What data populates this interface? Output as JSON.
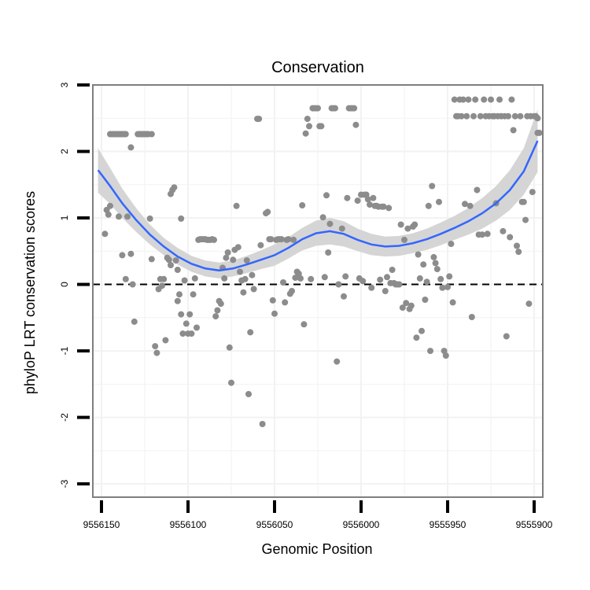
{
  "chart_data": {
    "type": "scatter",
    "title": "Conservation",
    "xlabel": "Genomic Position",
    "ylabel": "phyloP LRT conservation scores",
    "x_reversed": true,
    "xlim": [
      9556155,
      9555895
    ],
    "ylim": [
      -3.2,
      3.0
    ],
    "x_ticks": [
      9556150,
      9556100,
      9556050,
      9556000,
      9555950,
      9555900
    ],
    "x_tick_labels": [
      "9556150",
      "9556100",
      "9556050",
      "9556000",
      "9555950",
      "9555900"
    ],
    "y_ticks": [
      -3,
      -2,
      -1,
      0,
      1,
      2,
      3
    ],
    "y_tick_labels": [
      "-3",
      "-2",
      "-1",
      "0",
      "1",
      "2",
      "3"
    ],
    "grid": true,
    "reference_line": {
      "y": 0,
      "style": "dashed",
      "color": "#000000"
    },
    "colors": {
      "points": "#8c8c8c",
      "smooth_line": "#3366ff",
      "confidence_band": "#d3d3d3",
      "panel_border": "#7f7f7f",
      "grid": "#f2f2f2"
    },
    "points": [
      [
        9556148,
        0.76
      ],
      [
        9556147,
        1.12
      ],
      [
        9556146,
        1.05
      ],
      [
        9556145,
        2.26
      ],
      [
        9556144,
        2.26
      ],
      [
        9556143,
        2.26
      ],
      [
        9556142,
        2.26
      ],
      [
        9556141,
        2.26
      ],
      [
        9556140,
        2.26
      ],
      [
        9556139,
        2.26
      ],
      [
        9556138,
        2.26
      ],
      [
        9556137,
        2.26
      ],
      [
        9556136,
        2.26
      ],
      [
        9556145,
        1.18
      ],
      [
        9556140,
        1.02
      ],
      [
        9556138,
        0.44
      ],
      [
        9556136,
        0.08
      ],
      [
        9556135,
        1.02
      ],
      [
        9556133,
        2.06
      ],
      [
        9556133,
        0.46
      ],
      [
        9556132,
        0.0
      ],
      [
        9556131,
        -0.56
      ],
      [
        9556129,
        2.26
      ],
      [
        9556128,
        2.26
      ],
      [
        9556127,
        2.26
      ],
      [
        9556126,
        2.26
      ],
      [
        9556125,
        2.26
      ],
      [
        9556124,
        2.26
      ],
      [
        9556123,
        2.26
      ],
      [
        9556121,
        2.26
      ],
      [
        9556122,
        0.99
      ],
      [
        9556121,
        0.38
      ],
      [
        9556119,
        -0.93
      ],
      [
        9556118,
        -1.03
      ],
      [
        9556117,
        -0.07
      ],
      [
        9556116,
        0.08
      ],
      [
        9556115,
        -0.02
      ],
      [
        9556114,
        0.08
      ],
      [
        9556113,
        -0.84
      ],
      [
        9556112,
        0.4
      ],
      [
        9556111,
        0.37
      ],
      [
        9556110,
        0.29
      ],
      [
        9556110,
        1.36
      ],
      [
        9556109,
        1.42
      ],
      [
        9556108,
        1.46
      ],
      [
        9556107,
        0.36
      ],
      [
        9556106,
        0.22
      ],
      [
        9556106,
        -0.25
      ],
      [
        9556105,
        -0.15
      ],
      [
        9556104,
        0.99
      ],
      [
        9556104,
        -0.45
      ],
      [
        9556103,
        -0.74
      ],
      [
        9556102,
        0.06
      ],
      [
        9556101,
        -0.59
      ],
      [
        9556100,
        -0.74
      ],
      [
        9556099,
        -0.45
      ],
      [
        9556098,
        -0.74
      ],
      [
        9556097,
        -0.15
      ],
      [
        9556096,
        0.09
      ],
      [
        9556095,
        -0.65
      ],
      [
        9556094,
        0.67
      ],
      [
        9556093,
        0.68
      ],
      [
        9556092,
        0.68
      ],
      [
        9556091,
        0.68
      ],
      [
        9556090,
        0.68
      ],
      [
        9556089,
        0.67
      ],
      [
        9556088,
        0.67
      ],
      [
        9556087,
        0.67
      ],
      [
        9556086,
        0.68
      ],
      [
        9556085,
        0.67
      ],
      [
        9556084,
        -0.48
      ],
      [
        9556083,
        -0.39
      ],
      [
        9556082,
        -0.25
      ],
      [
        9556081,
        -0.29
      ],
      [
        9556080,
        0.25
      ],
      [
        9556079,
        0.09
      ],
      [
        9556078,
        0.4
      ],
      [
        9556077,
        0.48
      ],
      [
        9556076,
        -0.95
      ],
      [
        9556075,
        -1.48
      ],
      [
        9556074,
        0.37
      ],
      [
        9556073,
        0.52
      ],
      [
        9556072,
        1.18
      ],
      [
        9556071,
        0.56
      ],
      [
        9556070,
        0.19
      ],
      [
        9556069,
        0.06
      ],
      [
        9556068,
        -0.12
      ],
      [
        9556067,
        0.08
      ],
      [
        9556066,
        0.36
      ],
      [
        9556065,
        -1.65
      ],
      [
        9556064,
        -0.72
      ],
      [
        9556063,
        0.14
      ],
      [
        9556062,
        -0.07
      ],
      [
        9556060,
        2.49
      ],
      [
        9556059,
        2.49
      ],
      [
        9556058,
        0.59
      ],
      [
        9556057,
        -2.1
      ],
      [
        9556055,
        1.07
      ],
      [
        9556054,
        1.09
      ],
      [
        9556053,
        0.68
      ],
      [
        9556052,
        0.68
      ],
      [
        9556051,
        -0.24
      ],
      [
        9556050,
        -0.44
      ],
      [
        9556049,
        0.67
      ],
      [
        9556048,
        0.68
      ],
      [
        9556047,
        0.68
      ],
      [
        9556046,
        0.68
      ],
      [
        9556045,
        0.03
      ],
      [
        9556044,
        -0.27
      ],
      [
        9556043,
        0.67
      ],
      [
        9556042,
        0.68
      ],
      [
        9556041,
        -0.14
      ],
      [
        9556040,
        -0.1
      ],
      [
        9556039,
        0.67
      ],
      [
        9556038,
        0.1
      ],
      [
        9556037,
        0.19
      ],
      [
        9556036,
        0.16
      ],
      [
        9556035,
        0.09
      ],
      [
        9556034,
        1.19
      ],
      [
        9556033,
        -0.6
      ],
      [
        9556032,
        2.27
      ],
      [
        9556031,
        2.49
      ],
      [
        9556030,
        2.38
      ],
      [
        9556029,
        0.08
      ],
      [
        9556028,
        2.65
      ],
      [
        9556027,
        2.65
      ],
      [
        9556026,
        2.65
      ],
      [
        9556025,
        2.65
      ],
      [
        9556024,
        2.38
      ],
      [
        9556023,
        2.38
      ],
      [
        9556022,
        1.01
      ],
      [
        9556021,
        0.11
      ],
      [
        9556020,
        1.34
      ],
      [
        9556019,
        0.48
      ],
      [
        9556018,
        0.91
      ],
      [
        9556017,
        2.65
      ],
      [
        9556016,
        2.65
      ],
      [
        9556015,
        2.65
      ],
      [
        9556014,
        -1.16
      ],
      [
        9556013,
        0.0
      ],
      [
        9556011,
        0.84
      ],
      [
        9556010,
        -0.18
      ],
      [
        9556009,
        0.12
      ],
      [
        9556008,
        1.3
      ],
      [
        9556007,
        2.65
      ],
      [
        9556006,
        2.65
      ],
      [
        9556005,
        2.65
      ],
      [
        9556004,
        2.65
      ],
      [
        9556003,
        2.4
      ],
      [
        9556002,
        1.26
      ],
      [
        9556001,
        0.09
      ],
      [
        9556000,
        1.35
      ],
      [
        9555999,
        0.05
      ],
      [
        9555998,
        1.35
      ],
      [
        9555997,
        1.35
      ],
      [
        9555996,
        1.28
      ],
      [
        9555995,
        1.2
      ],
      [
        9555994,
        -0.05
      ],
      [
        9555993,
        1.3
      ],
      [
        9555992,
        1.18
      ],
      [
        9555991,
        1.18
      ],
      [
        9555990,
        1.17
      ],
      [
        9555989,
        0.07
      ],
      [
        9555988,
        1.17
      ],
      [
        9555987,
        1.17
      ],
      [
        9555986,
        -0.1
      ],
      [
        9555985,
        0.11
      ],
      [
        9555984,
        1.15
      ],
      [
        9555983,
        0.02
      ],
      [
        9555982,
        0.22
      ],
      [
        9555981,
        0.02
      ],
      [
        9555980,
        0.0
      ],
      [
        9555979,
        0.0
      ],
      [
        9555978,
        0.0
      ],
      [
        9555977,
        0.9
      ],
      [
        9555976,
        -0.35
      ],
      [
        9555975,
        0.67
      ],
      [
        9555974,
        -0.28
      ],
      [
        9555973,
        0.84
      ],
      [
        9555972,
        -0.37
      ],
      [
        9555971,
        -0.32
      ],
      [
        9555970,
        0.87
      ],
      [
        9555969,
        0.9
      ],
      [
        9555968,
        -0.8
      ],
      [
        9555967,
        0.45
      ],
      [
        9555966,
        0.09
      ],
      [
        9555965,
        -0.7
      ],
      [
        9555964,
        0.3
      ],
      [
        9555963,
        -0.23
      ],
      [
        9555962,
        0.04
      ],
      [
        9555961,
        1.18
      ],
      [
        9555960,
        -1.0
      ],
      [
        9555959,
        1.48
      ],
      [
        9555958,
        0.41
      ],
      [
        9555957,
        0.32
      ],
      [
        9555956,
        0.23
      ],
      [
        9555955,
        1.24
      ],
      [
        9555954,
        0.08
      ],
      [
        9555953,
        -0.05
      ],
      [
        9555952,
        -1.0
      ],
      [
        9555951,
        -1.07
      ],
      [
        9555950,
        -0.04
      ],
      [
        9555949,
        0.12
      ],
      [
        9555948,
        0.61
      ],
      [
        9555947,
        -0.27
      ],
      [
        9555946,
        2.78
      ],
      [
        9555945,
        2.53
      ],
      [
        9555944,
        2.53
      ],
      [
        9555943,
        2.78
      ],
      [
        9555942,
        2.53
      ],
      [
        9555941,
        2.78
      ],
      [
        9555940,
        1.21
      ],
      [
        9555939,
        2.53
      ],
      [
        9555938,
        2.78
      ],
      [
        9555937,
        1.18
      ],
      [
        9555936,
        -0.49
      ],
      [
        9555935,
        2.53
      ],
      [
        9555934,
        2.78
      ],
      [
        9555933,
        1.42
      ],
      [
        9555932,
        0.75
      ],
      [
        9555931,
        2.53
      ],
      [
        9555930,
        0.75
      ],
      [
        9555929,
        2.78
      ],
      [
        9555928,
        2.53
      ],
      [
        9555927,
        0.76
      ],
      [
        9555926,
        2.53
      ],
      [
        9555925,
        2.78
      ],
      [
        9555924,
        2.53
      ],
      [
        9555923,
        2.53
      ],
      [
        9555922,
        1.22
      ],
      [
        9555921,
        2.53
      ],
      [
        9555920,
        2.78
      ],
      [
        9555919,
        2.53
      ],
      [
        9555918,
        0.8
      ],
      [
        9555917,
        2.53
      ],
      [
        9555916,
        -0.78
      ],
      [
        9555915,
        2.53
      ],
      [
        9555914,
        0.71
      ],
      [
        9555913,
        2.78
      ],
      [
        9555912,
        2.32
      ],
      [
        9555911,
        2.53
      ],
      [
        9555910,
        0.58
      ],
      [
        9555909,
        0.49
      ],
      [
        9555908,
        2.53
      ],
      [
        9555907,
        1.24
      ],
      [
        9555906,
        1.24
      ],
      [
        9555905,
        0.97
      ],
      [
        9555904,
        2.53
      ],
      [
        9555903,
        -0.29
      ],
      [
        9555902,
        2.53
      ],
      [
        9555901,
        1.39
      ],
      [
        9555900,
        2.53
      ],
      [
        9555899,
        2.53
      ],
      [
        9555898,
        2.28
      ],
      [
        9555897,
        2.28
      ],
      [
        9555898,
        2.5
      ]
    ],
    "smooth_curve": [
      [
        9556152,
        1.72
      ],
      [
        9556145,
        1.48
      ],
      [
        9556138,
        1.22
      ],
      [
        9556130,
        0.97
      ],
      [
        9556122,
        0.75
      ],
      [
        9556114,
        0.57
      ],
      [
        9556106,
        0.42
      ],
      [
        9556098,
        0.31
      ],
      [
        9556090,
        0.24
      ],
      [
        9556082,
        0.21
      ],
      [
        9556074,
        0.24
      ],
      [
        9556066,
        0.3
      ],
      [
        9556058,
        0.37
      ],
      [
        9556050,
        0.44
      ],
      [
        9556042,
        0.55
      ],
      [
        9556034,
        0.68
      ],
      [
        9556026,
        0.77
      ],
      [
        9556018,
        0.8
      ],
      [
        9556010,
        0.76
      ],
      [
        9556002,
        0.67
      ],
      [
        9555994,
        0.6
      ],
      [
        9555986,
        0.57
      ],
      [
        9555978,
        0.58
      ],
      [
        9555970,
        0.62
      ],
      [
        9555962,
        0.68
      ],
      [
        9555954,
        0.76
      ],
      [
        9555946,
        0.85
      ],
      [
        9555938,
        0.95
      ],
      [
        9555930,
        1.07
      ],
      [
        9555922,
        1.22
      ],
      [
        9555914,
        1.42
      ],
      [
        9555906,
        1.7
      ],
      [
        9555898,
        2.16
      ]
    ],
    "band_upper": [
      [
        9556152,
        2.05
      ],
      [
        9556145,
        1.75
      ],
      [
        9556138,
        1.44
      ],
      [
        9556130,
        1.15
      ],
      [
        9556122,
        0.9
      ],
      [
        9556114,
        0.7
      ],
      [
        9556106,
        0.55
      ],
      [
        9556098,
        0.43
      ],
      [
        9556090,
        0.36
      ],
      [
        9556082,
        0.33
      ],
      [
        9556074,
        0.36
      ],
      [
        9556066,
        0.43
      ],
      [
        9556058,
        0.51
      ],
      [
        9556050,
        0.6
      ],
      [
        9556042,
        0.71
      ],
      [
        9556034,
        0.85
      ],
      [
        9556026,
        0.96
      ],
      [
        9556018,
        1.0
      ],
      [
        9556010,
        0.95
      ],
      [
        9556002,
        0.84
      ],
      [
        9555994,
        0.76
      ],
      [
        9555986,
        0.72
      ],
      [
        9555978,
        0.73
      ],
      [
        9555970,
        0.77
      ],
      [
        9555962,
        0.84
      ],
      [
        9555954,
        0.93
      ],
      [
        9555946,
        1.03
      ],
      [
        9555938,
        1.15
      ],
      [
        9555930,
        1.3
      ],
      [
        9555922,
        1.48
      ],
      [
        9555914,
        1.72
      ],
      [
        9555906,
        2.05
      ],
      [
        9555898,
        2.63
      ]
    ],
    "band_lower": [
      [
        9556152,
        1.38
      ],
      [
        9556145,
        1.21
      ],
      [
        9556138,
        1.0
      ],
      [
        9556130,
        0.79
      ],
      [
        9556122,
        0.6
      ],
      [
        9556114,
        0.44
      ],
      [
        9556106,
        0.3
      ],
      [
        9556098,
        0.19
      ],
      [
        9556090,
        0.12
      ],
      [
        9556082,
        0.09
      ],
      [
        9556074,
        0.12
      ],
      [
        9556066,
        0.17
      ],
      [
        9556058,
        0.23
      ],
      [
        9556050,
        0.28
      ],
      [
        9556042,
        0.39
      ],
      [
        9556034,
        0.51
      ],
      [
        9556026,
        0.58
      ],
      [
        9556018,
        0.6
      ],
      [
        9556010,
        0.57
      ],
      [
        9556002,
        0.5
      ],
      [
        9555994,
        0.44
      ],
      [
        9555986,
        0.42
      ],
      [
        9555978,
        0.43
      ],
      [
        9555970,
        0.47
      ],
      [
        9555962,
        0.52
      ],
      [
        9555954,
        0.59
      ],
      [
        9555946,
        0.67
      ],
      [
        9555938,
        0.75
      ],
      [
        9555930,
        0.84
      ],
      [
        9555922,
        0.96
      ],
      [
        9555914,
        1.12
      ],
      [
        9555906,
        1.35
      ],
      [
        9555898,
        1.69
      ]
    ]
  }
}
